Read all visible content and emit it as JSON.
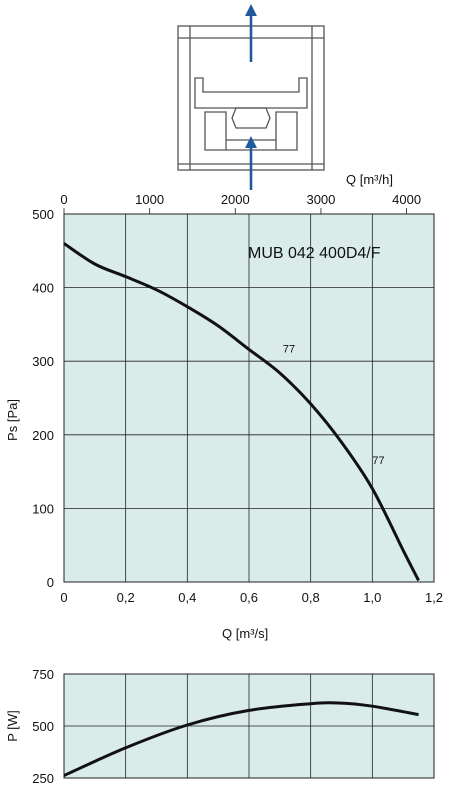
{
  "colors": {
    "plot_bg": "#d9ecea",
    "grid": "#222222",
    "curve": "#111111",
    "arrow": "#1f5b9c",
    "unit_outline": "#555555"
  },
  "icons": [
    "fan-unit-diagram",
    "airflow-up-arrow"
  ],
  "chart_data": [
    {
      "type": "line",
      "title": "MUB 042 400D4/F",
      "xlabel": "Q [m³/s]",
      "ylabel": "Ps [Pa]",
      "secondary_xlabel": "Q [m³/h]",
      "xlim": [
        0,
        1.2
      ],
      "ylim": [
        0,
        500
      ],
      "xticks": [
        0,
        0.2,
        0.4,
        0.6,
        0.8,
        1.0,
        1.2
      ],
      "xtick_labels": [
        "0",
        "0,2",
        "0,4",
        "0,6",
        "0,8",
        "1,0",
        "1,2"
      ],
      "yticks": [
        0,
        100,
        200,
        300,
        400,
        500
      ],
      "ytick_labels": [
        "0",
        "100",
        "200",
        "300",
        "400",
        "500"
      ],
      "secondary_xticks": [
        0,
        1000,
        2000,
        3000,
        4000
      ],
      "secondary_xtick_labels": [
        "0",
        "1000",
        "2000",
        "3000",
        "4000"
      ],
      "secondary_xlim": [
        0,
        4320
      ],
      "grid": true,
      "series": [
        {
          "x": [
            0,
            0.1,
            0.2,
            0.3,
            0.4,
            0.5,
            0.6,
            0.7,
            0.8,
            0.9,
            1.0,
            1.1,
            1.15
          ],
          "y": [
            460,
            432,
            415,
            397,
            374,
            348,
            316,
            284,
            242,
            190,
            127,
            43,
            2
          ]
        }
      ],
      "annotations": [
        {
          "text": "77",
          "x": 0.71,
          "y": 312
        },
        {
          "text": "77",
          "x": 1.0,
          "y": 160
        }
      ]
    },
    {
      "type": "line",
      "xlabel": "",
      "ylabel": "P [W]",
      "xlim": [
        0,
        1.2
      ],
      "ylim": [
        250,
        750
      ],
      "yticks": [
        250,
        500,
        750
      ],
      "ytick_labels": [
        "250",
        "500",
        "750"
      ],
      "grid": true,
      "series": [
        {
          "x": [
            0,
            0.2,
            0.4,
            0.6,
            0.8,
            0.9,
            1.0,
            1.15
          ],
          "y": [
            262,
            395,
            505,
            575,
            607,
            610,
            595,
            555
          ]
        }
      ]
    }
  ]
}
